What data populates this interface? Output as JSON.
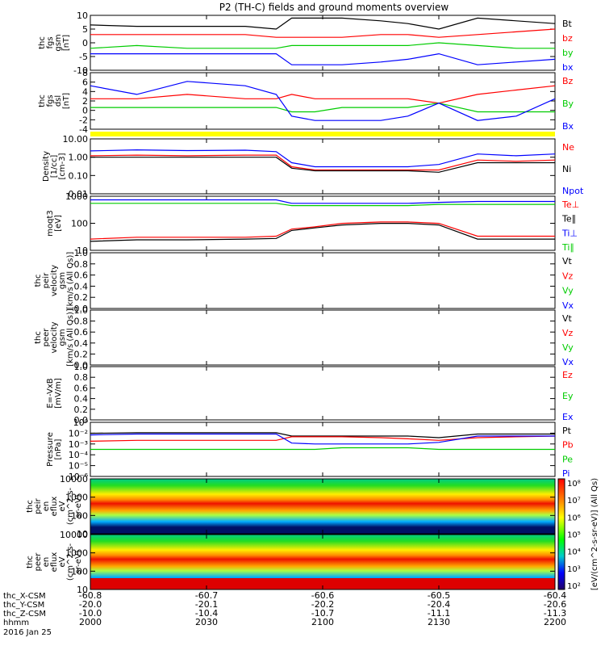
{
  "title": "P2 (TH-C) fields and ground moments overview",
  "colors": {
    "black": "#000000",
    "red": "#ff0000",
    "green": "#00cc00",
    "blue": "#0000ff",
    "yellow": "#ffff00"
  },
  "chart_data": [
    {
      "id": "fgs",
      "type": "line",
      "ylabel": [
        "thc",
        "fgs",
        "gsm",
        "[nT]"
      ],
      "ylim": [
        -10,
        10
      ],
      "yticks": [
        "10",
        "5",
        "0",
        "-5",
        "-10"
      ],
      "scale": "linear",
      "legend": [
        {
          "label": "Bt",
          "color": "black"
        },
        {
          "label": "bz",
          "color": "red"
        },
        {
          "label": "by",
          "color": "green"
        },
        {
          "label": "bx",
          "color": "blue"
        }
      ],
      "series": [
        {
          "name": "Bt",
          "color": "black",
          "x": [
            0,
            12,
            25,
            40,
            48,
            52,
            58,
            65,
            75,
            82,
            90,
            100,
            110,
            120
          ],
          "values": [
            6.5,
            6,
            6,
            6,
            5,
            9,
            9,
            9,
            8,
            7,
            5,
            9,
            8,
            7
          ]
        },
        {
          "name": "bz",
          "color": "red",
          "x": [
            0,
            12,
            25,
            40,
            48,
            52,
            58,
            65,
            75,
            82,
            90,
            100,
            110,
            120
          ],
          "values": [
            3,
            3,
            3,
            3,
            2,
            2,
            2,
            2,
            3,
            3,
            2,
            3,
            4,
            5
          ]
        },
        {
          "name": "by",
          "color": "green",
          "x": [
            0,
            12,
            25,
            40,
            48,
            52,
            58,
            65,
            75,
            82,
            90,
            100,
            110,
            120
          ],
          "values": [
            -2,
            -1,
            -2,
            -2,
            -2,
            -1,
            -1,
            -1,
            -1,
            -1,
            0,
            -1,
            -2,
            -2
          ]
        },
        {
          "name": "bx",
          "color": "blue",
          "x": [
            0,
            12,
            25,
            40,
            48,
            52,
            58,
            65,
            75,
            82,
            90,
            100,
            110,
            120
          ],
          "values": [
            -4,
            -4,
            -4,
            -4,
            -4,
            -8,
            -8,
            -8,
            -7,
            -6,
            -4,
            -8,
            -7,
            -6
          ]
        }
      ]
    },
    {
      "id": "fgs_dsl",
      "type": "line",
      "ylabel": [
        "thc",
        "fgs",
        "dsl",
        "[nT]"
      ],
      "ylim": [
        -5,
        8
      ],
      "yticks": [
        "8",
        "6",
        "4",
        "2",
        "0",
        "-2",
        "-4"
      ],
      "scale": "linear",
      "legend": [
        {
          "label": "Bz",
          "color": "red"
        },
        {
          "label": "By",
          "color": "green"
        },
        {
          "label": "Bx",
          "color": "blue"
        }
      ],
      "series": [
        {
          "name": "Bz",
          "color": "red",
          "x": [
            0,
            12,
            25,
            40,
            48,
            52,
            58,
            65,
            75,
            82,
            90,
            100,
            110,
            120
          ],
          "values": [
            2,
            2,
            3,
            2,
            2,
            3,
            2,
            2,
            2,
            2,
            1,
            3,
            4,
            5
          ]
        },
        {
          "name": "By",
          "color": "green",
          "x": [
            0,
            12,
            25,
            40,
            48,
            52,
            58,
            65,
            75,
            82,
            90,
            100,
            110,
            120
          ],
          "values": [
            0,
            0,
            0,
            0,
            0,
            -1,
            -1,
            0,
            0,
            0,
            1,
            -1,
            -1,
            -1
          ]
        },
        {
          "name": "Bx",
          "color": "blue",
          "x": [
            0,
            12,
            25,
            40,
            48,
            52,
            58,
            65,
            75,
            82,
            90,
            100,
            110,
            120
          ],
          "values": [
            5,
            3,
            6,
            5,
            3,
            -2,
            -3,
            -3,
            -3,
            -2,
            1,
            -3,
            -2,
            2
          ]
        }
      ]
    },
    {
      "id": "density",
      "type": "line",
      "ylabel": [
        "Density",
        "[1/cc]",
        "[cm-3]"
      ],
      "ylim": [
        0.01,
        10
      ],
      "yticks": [
        "10.00",
        "1.00",
        "0.10",
        "0.01"
      ],
      "scale": "log",
      "legend": [
        {
          "label": "Ne",
          "color": "red"
        },
        {
          "label": "Ni",
          "color": "black"
        },
        {
          "label": "Npot",
          "color": "blue"
        }
      ],
      "series": [
        {
          "name": "Ne",
          "color": "red",
          "x": [
            0,
            12,
            25,
            40,
            48,
            52,
            58,
            65,
            75,
            82,
            90,
            100,
            110,
            120
          ],
          "values": [
            1.2,
            1.3,
            1.2,
            1.3,
            1.3,
            0.3,
            0.2,
            0.2,
            0.2,
            0.2,
            0.2,
            0.7,
            0.6,
            0.7
          ]
        },
        {
          "name": "Ni",
          "color": "black",
          "x": [
            0,
            12,
            25,
            40,
            48,
            52,
            58,
            65,
            75,
            82,
            90,
            100,
            110,
            120
          ],
          "values": [
            1,
            1,
            1,
            1,
            1,
            0.25,
            0.18,
            0.18,
            0.18,
            0.18,
            0.15,
            0.5,
            0.5,
            0.5
          ]
        },
        {
          "name": "Npot",
          "color": "blue",
          "x": [
            0,
            12,
            25,
            40,
            48,
            52,
            58,
            65,
            75,
            82,
            90,
            100,
            110,
            120
          ],
          "values": [
            2.2,
            2.5,
            2.3,
            2.4,
            2,
            0.5,
            0.3,
            0.3,
            0.3,
            0.3,
            0.4,
            1.5,
            1.2,
            1.5
          ]
        }
      ]
    },
    {
      "id": "temperature",
      "type": "line",
      "ylabel": [
        "moqt3",
        "[eV]"
      ],
      "ylim": [
        5,
        1000
      ],
      "yticks": [
        "1000",
        "100",
        "10"
      ],
      "scale": "log",
      "legend": [
        {
          "label": "Te⊥",
          "color": "red"
        },
        {
          "label": "Te∥",
          "color": "black"
        },
        {
          "label": "Ti⊥",
          "color": "blue"
        },
        {
          "label": "Ti∥",
          "color": "green"
        }
      ],
      "series": [
        {
          "name": "Te⊥",
          "color": "red",
          "x": [
            0,
            12,
            25,
            40,
            48,
            52,
            58,
            65,
            75,
            82,
            90,
            100,
            110,
            120
          ],
          "values": [
            15,
            18,
            18,
            18,
            20,
            40,
            50,
            70,
            80,
            80,
            70,
            20,
            20,
            20
          ]
        },
        {
          "name": "Te∥",
          "color": "black",
          "x": [
            0,
            12,
            25,
            40,
            48,
            52,
            58,
            65,
            75,
            82,
            90,
            100,
            110,
            120
          ],
          "values": [
            12,
            14,
            14,
            15,
            16,
            35,
            45,
            60,
            70,
            70,
            60,
            15,
            15,
            15
          ]
        },
        {
          "name": "Ti⊥",
          "color": "blue",
          "x": [
            0,
            12,
            25,
            40,
            48,
            52,
            58,
            65,
            75,
            82,
            90,
            100,
            110,
            120
          ],
          "values": [
            700,
            700,
            700,
            700,
            700,
            500,
            500,
            500,
            500,
            500,
            550,
            600,
            600,
            600
          ]
        },
        {
          "name": "Ti∥",
          "color": "green",
          "x": [
            0,
            12,
            25,
            40,
            48,
            52,
            58,
            65,
            75,
            82,
            90,
            100,
            110,
            120
          ],
          "values": [
            500,
            500,
            500,
            500,
            500,
            400,
            400,
            400,
            400,
            400,
            450,
            450,
            450,
            450
          ]
        }
      ]
    },
    {
      "id": "peir_velocity",
      "type": "line",
      "ylabel": [
        "thc",
        "peir",
        "velocity",
        "gsm",
        "[km/s (All Qs)]"
      ],
      "ylim": [
        0,
        1
      ],
      "yticks": [
        "1.0",
        "0.8",
        "0.6",
        "0.4",
        "0.2",
        "0.0"
      ],
      "scale": "linear",
      "legend": [
        {
          "label": "Vt",
          "color": "black"
        },
        {
          "label": "Vz",
          "color": "red"
        },
        {
          "label": "Vy",
          "color": "green"
        },
        {
          "label": "Vx",
          "color": "blue"
        }
      ],
      "series": []
    },
    {
      "id": "peer_velocity",
      "type": "line",
      "ylabel": [
        "thc",
        "peer",
        "velocity",
        "gsm",
        "[km/s (All Qs)]"
      ],
      "ylim": [
        0,
        1
      ],
      "yticks": [
        "1.0",
        "0.8",
        "0.6",
        "0.4",
        "0.2",
        "0.0"
      ],
      "scale": "linear",
      "legend": [
        {
          "label": "Vt",
          "color": "black"
        },
        {
          "label": "Vz",
          "color": "red"
        },
        {
          "label": "Vy",
          "color": "green"
        },
        {
          "label": "Vx",
          "color": "blue"
        }
      ],
      "series": []
    },
    {
      "id": "efield",
      "type": "line",
      "ylabel": [
        "E=-VxB",
        "[mV/m]"
      ],
      "ylim": [
        0,
        1
      ],
      "yticks": [
        "1.0",
        "0.8",
        "0.6",
        "0.4",
        "0.2",
        "0.0"
      ],
      "scale": "linear",
      "legend": [
        {
          "label": "Ez",
          "color": "red"
        },
        {
          "label": "Ey",
          "color": "green"
        },
        {
          "label": "Ex",
          "color": "blue"
        }
      ],
      "series": []
    },
    {
      "id": "pressure",
      "type": "line",
      "ylabel": [
        "Pressure",
        "[nPa]"
      ],
      "ylim": [
        1e-06,
        1
      ],
      "yticks": [
        "10⁰",
        "10⁻²",
        "10⁻³",
        "10⁻⁴",
        "10⁻⁵",
        "10⁻⁶"
      ],
      "scale": "log",
      "legend": [
        {
          "label": "Pt",
          "color": "black"
        },
        {
          "label": "Pb",
          "color": "red"
        },
        {
          "label": "Pe",
          "color": "green"
        },
        {
          "label": "Pi",
          "color": "blue"
        }
      ],
      "series": [
        {
          "name": "Pt",
          "color": "black",
          "x": [
            0,
            12,
            25,
            40,
            48,
            52,
            58,
            65,
            75,
            82,
            90,
            100,
            110,
            120
          ],
          "values": [
            0.06,
            0.07,
            0.07,
            0.07,
            0.07,
            0.03,
            0.03,
            0.03,
            0.03,
            0.03,
            0.02,
            0.05,
            0.05,
            0.05
          ]
        },
        {
          "name": "Pb",
          "color": "red",
          "x": [
            0,
            12,
            25,
            40,
            48,
            52,
            58,
            65,
            75,
            82,
            90,
            100,
            110,
            120
          ],
          "values": [
            0.008,
            0.01,
            0.01,
            0.01,
            0.01,
            0.025,
            0.025,
            0.025,
            0.02,
            0.015,
            0.01,
            0.02,
            0.025,
            0.03
          ]
        },
        {
          "name": "Pe",
          "color": "green",
          "x": [
            0,
            12,
            25,
            40,
            48,
            52,
            58,
            65,
            75,
            82,
            90,
            100,
            110,
            120
          ],
          "values": [
            0.001,
            0.001,
            0.001,
            0.001,
            0.001,
            0.001,
            0.001,
            0.0015,
            0.0015,
            0.0015,
            0.001,
            0.001,
            0.001,
            0.001
          ]
        },
        {
          "name": "Pi",
          "color": "blue",
          "x": [
            0,
            12,
            25,
            40,
            48,
            52,
            58,
            65,
            75,
            82,
            90,
            100,
            110,
            120
          ],
          "values": [
            0.04,
            0.05,
            0.05,
            0.05,
            0.05,
            0.005,
            0.004,
            0.004,
            0.004,
            0.004,
            0.006,
            0.03,
            0.03,
            0.03
          ]
        }
      ]
    },
    {
      "id": "peir_spec",
      "type": "heatmap",
      "ylabel": [
        "thc",
        "peir",
        "en",
        "eflux",
        "eV",
        "(cm^2-s-",
        "sr-eV)"
      ],
      "yticks": [
        "10000",
        "1000",
        "100",
        "10"
      ],
      "ylim": [
        5,
        20000
      ],
      "scale": "log"
    },
    {
      "id": "peer_spec",
      "type": "heatmap",
      "ylabel": [
        "thc",
        "peer",
        "en",
        "eflux",
        "eV",
        "(cm^2-s-",
        "sr-eV)"
      ],
      "yticks": [
        "10000",
        "1000",
        "100",
        "10"
      ],
      "ylim": [
        5,
        20000
      ],
      "scale": "log"
    }
  ],
  "colorbar": {
    "ticks": [
      "10⁸",
      "10⁷",
      "10⁶",
      "10⁵",
      "10⁴",
      "10³",
      "10²"
    ],
    "label": "[eV/(cm^2-s-sr-eV)] (All Qs)"
  },
  "xaxis": {
    "row_labels": [
      "thc_X-CSM",
      "thc_Y-CSM",
      "thc_Z-CSM",
      "hhmm",
      "2016 Jan 25"
    ],
    "ticks": [
      {
        "x": 0,
        "vals": [
          "-60.8",
          "-20.0",
          "-10.0",
          "2000"
        ]
      },
      {
        "x": 30,
        "vals": [
          "-60.7",
          "-20.1",
          "-10.4",
          "2030"
        ]
      },
      {
        "x": 60,
        "vals": [
          "-60.6",
          "-20.2",
          "-10.7",
          "2100"
        ]
      },
      {
        "x": 90,
        "vals": [
          "-60.5",
          "-20.4",
          "-11.1",
          "2130"
        ]
      },
      {
        "x": 120,
        "vals": [
          "-60.4",
          "-20.6",
          "-11.3",
          "2200"
        ]
      }
    ]
  }
}
